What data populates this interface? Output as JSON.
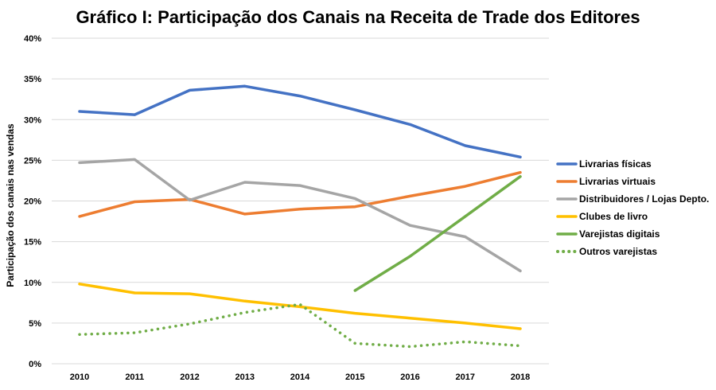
{
  "chart_data": {
    "type": "line",
    "title": "Gráfico I: Participação dos Canais na Receita de Trade dos Editores",
    "xlabel": "",
    "ylabel": "Participação dos canais nas vendas",
    "categories": [
      "2010",
      "2011",
      "2012",
      "2013",
      "2014",
      "2015",
      "2016",
      "2017",
      "2018"
    ],
    "ylim": [
      0,
      40
    ],
    "yticks": [
      "0%",
      "5%",
      "10%",
      "15%",
      "20%",
      "25%",
      "30%",
      "35%",
      "40%"
    ],
    "grid": true,
    "legend_position": "right",
    "series": [
      {
        "name": "Livrarias físicas",
        "color": "#4472C4",
        "dash": "solid",
        "values": [
          31.0,
          30.6,
          33.6,
          34.1,
          32.9,
          31.2,
          29.4,
          26.8,
          25.4
        ]
      },
      {
        "name": "Livrarias virtuais",
        "color": "#ED7D31",
        "dash": "solid",
        "values": [
          18.1,
          19.9,
          20.2,
          18.4,
          19.0,
          19.3,
          20.6,
          21.8,
          23.5
        ]
      },
      {
        "name": "Distribuidores / Lojas Depto.",
        "color": "#A5A5A5",
        "dash": "solid",
        "values": [
          24.7,
          25.1,
          20.1,
          22.3,
          21.9,
          20.3,
          17.0,
          15.6,
          11.4
        ]
      },
      {
        "name": "Clubes de livro",
        "color": "#FFC000",
        "dash": "solid",
        "values": [
          9.8,
          8.7,
          8.6,
          7.7,
          7.0,
          6.2,
          5.6,
          5.0,
          4.3
        ]
      },
      {
        "name": "Varejistas digitais",
        "color": "#70AD47",
        "dash": "solid",
        "values": [
          null,
          null,
          null,
          null,
          null,
          9.0,
          13.2,
          18.1,
          23.0
        ]
      },
      {
        "name": "Outros varejistas",
        "color": "#70AD47",
        "dash": "dotted",
        "values": [
          3.6,
          3.8,
          4.9,
          6.3,
          7.3,
          2.5,
          2.1,
          2.7,
          2.2
        ]
      }
    ]
  }
}
